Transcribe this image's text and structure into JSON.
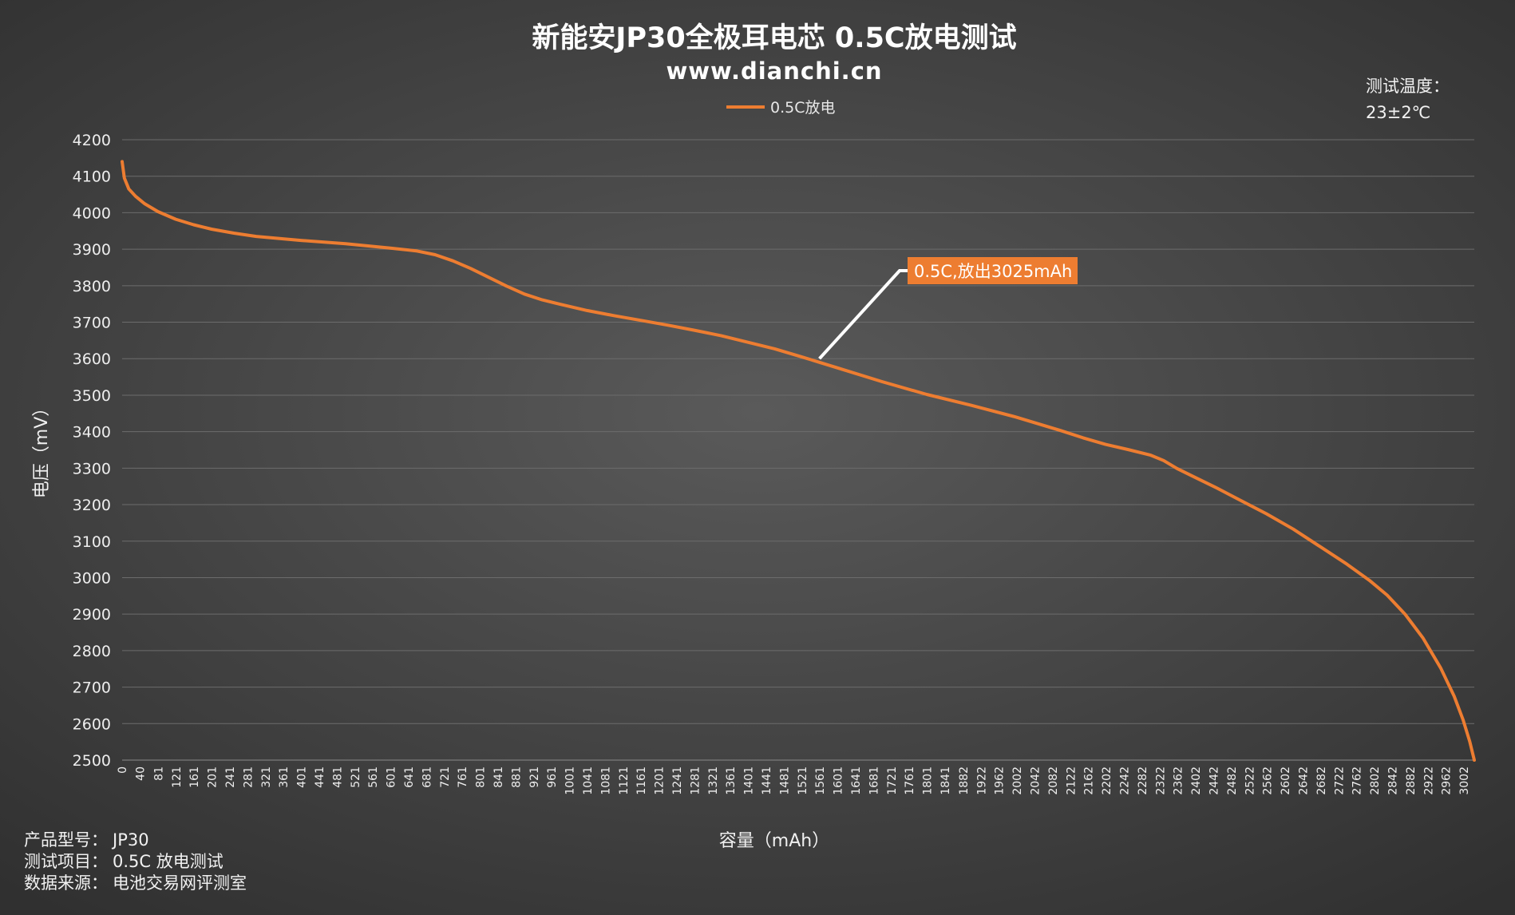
{
  "chart_data": {
    "type": "line",
    "title": "新能安JP30全极耳电芯 0.5C放电测试",
    "subtitle": "www.dianchi.cn",
    "xlabel": "容量（mAh）",
    "ylabel": "电压（mV）",
    "ylim": [
      2500,
      4200
    ],
    "yticks": [
      2500,
      2600,
      2700,
      2800,
      2900,
      3000,
      3100,
      3200,
      3300,
      3400,
      3500,
      3600,
      3700,
      3800,
      3900,
      4000,
      4100,
      4200
    ],
    "xticks": [
      "0",
      "40",
      "81",
      "121",
      "161",
      "201",
      "241",
      "281",
      "321",
      "361",
      "401",
      "441",
      "481",
      "521",
      "561",
      "601",
      "641",
      "681",
      "721",
      "761",
      "801",
      "841",
      "881",
      "921",
      "961",
      "1001",
      "1041",
      "1081",
      "1121",
      "1161",
      "1201",
      "1241",
      "1281",
      "1321",
      "1361",
      "1401",
      "1441",
      "1481",
      "1521",
      "1561",
      "1601",
      "1641",
      "1681",
      "1721",
      "1761",
      "1801",
      "1841",
      "1882",
      "1922",
      "1962",
      "2002",
      "2042",
      "2082",
      "2122",
      "2162",
      "2202",
      "2242",
      "2282",
      "2322",
      "2362",
      "2402",
      "2442",
      "2482",
      "2522",
      "2562",
      "2602",
      "2642",
      "2682",
      "2722",
      "2762",
      "2802",
      "2842",
      "2882",
      "2922",
      "2962",
      "3002"
    ],
    "grid": true,
    "legend_position": "top-center",
    "series": [
      {
        "name": "0.5C放电",
        "color": "#ED7D31",
        "points": [
          [
            0,
            4140
          ],
          [
            5,
            4095
          ],
          [
            15,
            4065
          ],
          [
            30,
            4045
          ],
          [
            50,
            4025
          ],
          [
            80,
            4003
          ],
          [
            120,
            3982
          ],
          [
            160,
            3967
          ],
          [
            200,
            3955
          ],
          [
            250,
            3944
          ],
          [
            300,
            3935
          ],
          [
            400,
            3924
          ],
          [
            500,
            3915
          ],
          [
            600,
            3903
          ],
          [
            660,
            3895
          ],
          [
            700,
            3885
          ],
          [
            740,
            3868
          ],
          [
            780,
            3847
          ],
          [
            820,
            3823
          ],
          [
            860,
            3799
          ],
          [
            900,
            3777
          ],
          [
            940,
            3761
          ],
          [
            980,
            3749
          ],
          [
            1040,
            3732
          ],
          [
            1100,
            3718
          ],
          [
            1160,
            3705
          ],
          [
            1220,
            3692
          ],
          [
            1280,
            3678
          ],
          [
            1340,
            3663
          ],
          [
            1400,
            3645
          ],
          [
            1460,
            3627
          ],
          [
            1520,
            3605
          ],
          [
            1560,
            3590
          ],
          [
            1600,
            3575
          ],
          [
            1700,
            3537
          ],
          [
            1800,
            3502
          ],
          [
            1900,
            3472
          ],
          [
            2000,
            3440
          ],
          [
            2100,
            3403
          ],
          [
            2150,
            3383
          ],
          [
            2200,
            3365
          ],
          [
            2250,
            3351
          ],
          [
            2300,
            3336
          ],
          [
            2330,
            3321
          ],
          [
            2360,
            3299
          ],
          [
            2400,
            3275
          ],
          [
            2450,
            3245
          ],
          [
            2500,
            3213
          ],
          [
            2560,
            3175
          ],
          [
            2620,
            3133
          ],
          [
            2680,
            3085
          ],
          [
            2740,
            3037
          ],
          [
            2790,
            2993
          ],
          [
            2830,
            2952
          ],
          [
            2870,
            2900
          ],
          [
            2910,
            2835
          ],
          [
            2950,
            2752
          ],
          [
            2980,
            2675
          ],
          [
            3000,
            2610
          ],
          [
            3015,
            2550
          ],
          [
            3025,
            2500
          ]
        ]
      }
    ],
    "annotations": [
      {
        "text": "0.5C,放出3025mAh",
        "point": [
          1560,
          3600
        ],
        "label_color": "#ED7D31",
        "leader_color": "#FFFFFF"
      }
    ]
  },
  "info": {
    "temperature_label": "测试温度：",
    "temperature_value": "23±2℃",
    "model_label": "产品型号：",
    "model_value": "JP30",
    "test_label": "测试项目：",
    "test_value": "0.5C 放电测试",
    "source_label": "数据来源：",
    "source_value": "电池交易网评测室"
  }
}
